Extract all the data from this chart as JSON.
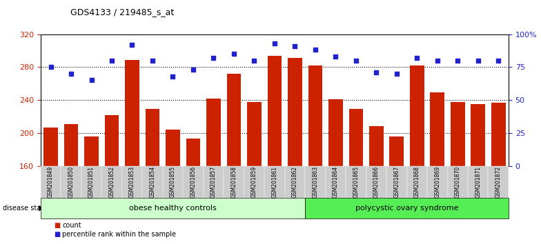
{
  "title": "GDS4133 / 219485_s_at",
  "samples": [
    "GSM201849",
    "GSM201850",
    "GSM201851",
    "GSM201852",
    "GSM201853",
    "GSM201854",
    "GSM201855",
    "GSM201856",
    "GSM201857",
    "GSM201858",
    "GSM201859",
    "GSM201861",
    "GSM201862",
    "GSM201863",
    "GSM201864",
    "GSM201865",
    "GSM201866",
    "GSM201867",
    "GSM201868",
    "GSM201869",
    "GSM201870",
    "GSM201871",
    "GSM201872"
  ],
  "counts": [
    207,
    211,
    196,
    222,
    289,
    229,
    204,
    193,
    242,
    272,
    238,
    294,
    291,
    282,
    241,
    229,
    208,
    196,
    282,
    249,
    238,
    235,
    237
  ],
  "percentiles": [
    75,
    70,
    65,
    80,
    92,
    80,
    68,
    73,
    82,
    85,
    80,
    93,
    91,
    88,
    83,
    80,
    71,
    70,
    82,
    80,
    80,
    80,
    80
  ],
  "group1_label": "obese healthy controls",
  "group1_n": 13,
  "group2_label": "polycystic ovary syndrome",
  "group2_n": 10,
  "bar_color": "#cc2200",
  "dot_color": "#2222cc",
  "ylim_left": [
    160,
    320
  ],
  "ylim_right": [
    0,
    100
  ],
  "yticks_left": [
    160,
    200,
    240,
    280,
    320
  ],
  "yticks_right": [
    0,
    25,
    50,
    75,
    100
  ],
  "ytick_labels_right": [
    "0",
    "25",
    "50",
    "75",
    "100%"
  ],
  "hgrid_values": [
    200,
    240,
    280
  ],
  "bg_color": "#ffffff",
  "group1_bg": "#ccffcc",
  "group2_bg": "#55ee55",
  "xtick_bg": "#cccccc",
  "label_count": "count",
  "label_percentile": "percentile rank within the sample",
  "bar_bottom": 160
}
